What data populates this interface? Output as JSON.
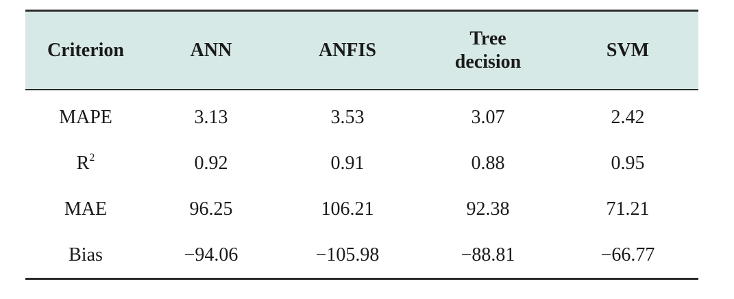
{
  "table": {
    "headers": [
      "Criterion",
      "ANN",
      "ANFIS",
      "Tree decision",
      "SVM"
    ],
    "rows": [
      {
        "criterion": "MAPE",
        "values": [
          "3.13",
          "3.53",
          "3.07",
          "2.42"
        ]
      },
      {
        "criterion": "R",
        "criterion_sup": "2",
        "values": [
          "0.92",
          "0.91",
          "0.88",
          "0.95"
        ]
      },
      {
        "criterion": "MAE",
        "values": [
          "96.25",
          "106.21",
          "92.38",
          "71.21"
        ]
      },
      {
        "criterion": "Bias",
        "values": [
          "−94.06",
          "−105.98",
          "−88.81",
          "−66.77"
        ]
      }
    ]
  },
  "colors": {
    "header_background": "#d6e9e6",
    "rule_color": "#2b2b2b"
  }
}
